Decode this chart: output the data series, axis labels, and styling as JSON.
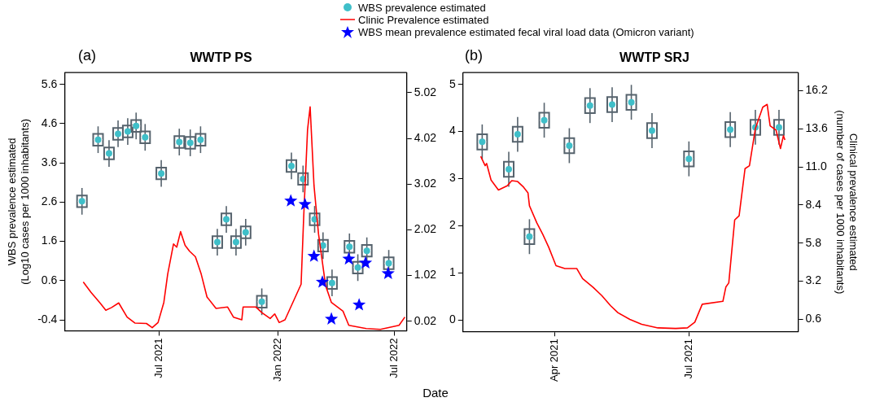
{
  "chart_data": [
    {
      "type": "box",
      "subtitle": "(a)",
      "title": "WWTP PS",
      "xlabel": "Date",
      "ylabel": "WBS prevalence estimated\n(Log10 cases per 1000 inhabitants)",
      "legend": "top",
      "grid": false,
      "xlim": [
        "2021-02-04",
        "2022-07-20"
      ],
      "xticks": [
        {
          "value": "2021-07-01",
          "label": "Jul 2021"
        },
        {
          "value": "2022-01-01",
          "label": "Jan 2022"
        },
        {
          "value": "2022-07-01",
          "label": "Jul 2022"
        }
      ],
      "ylim": [
        -0.68,
        5.9
      ],
      "yticks": [
        -0.4,
        0.6,
        1.6,
        2.6,
        3.6,
        4.6,
        5.6
      ],
      "y2lim": [
        -0.19,
        5.46
      ],
      "y2ticks": [
        0.02,
        1.02,
        2.02,
        3.02,
        4.02,
        5.02
      ],
      "series": [
        {
          "type": "scatter",
          "name": "WBS prevalence estimated",
          "color": "#3fbfc9",
          "marker": "circle",
          "x": [
            "2021-03-03",
            "2021-03-28",
            "2021-04-14",
            "2021-04-28",
            "2021-05-13",
            "2021-05-26",
            "2021-06-09",
            "2021-07-04",
            "2021-08-01",
            "2021-08-18",
            "2021-09-03",
            "2021-09-29",
            "2021-10-13",
            "2021-10-28",
            "2021-11-12",
            "2021-12-07",
            "2022-01-22",
            "2022-02-09",
            "2022-02-27",
            "2022-03-12",
            "2022-03-26",
            "2022-04-22",
            "2022-05-05",
            "2022-05-19",
            "2022-06-22"
          ],
          "values": [
            2.62,
            4.19,
            3.84,
            4.34,
            4.4,
            4.54,
            4.25,
            3.33,
            4.13,
            4.11,
            4.19,
            1.58,
            2.16,
            1.58,
            1.83,
            0.06,
            3.52,
            3.19,
            2.16,
            1.49,
            0.54,
            1.46,
            0.93,
            1.36,
            1.04
          ]
        },
        {
          "type": "line",
          "name": "Clinic Prevalence estimated",
          "color": "#ff0000",
          "axis": "y2",
          "line_style": "solid",
          "x": [
            "2021-03-05",
            "2021-03-17",
            "2021-03-31",
            "2021-04-09",
            "2021-04-18",
            "2021-04-29",
            "2021-05-12",
            "2021-05-24",
            "2021-06-11",
            "2021-06-20",
            "2021-06-29",
            "2021-07-08",
            "2021-07-14",
            "2021-07-23",
            "2021-07-28",
            "2021-08-03",
            "2021-08-10",
            "2021-08-17",
            "2021-08-26",
            "2021-09-04",
            "2021-09-13",
            "2021-09-27",
            "2021-10-15",
            "2021-10-24",
            "2021-11-06",
            "2021-11-08",
            "2021-11-28",
            "2021-12-07",
            "2021-12-20",
            "2021-12-27",
            "2022-01-03",
            "2022-01-12",
            "2022-02-06",
            "2022-02-10",
            "2022-02-16",
            "2022-02-20",
            "2022-02-26",
            "2022-03-05",
            "2022-03-16",
            "2022-03-25",
            "2022-04-12",
            "2022-04-21",
            "2022-05-18",
            "2022-06-09",
            "2022-07-08",
            "2022-07-17"
          ],
          "values": [
            0.88,
            0.65,
            0.42,
            0.26,
            0.32,
            0.42,
            0.11,
            -0.02,
            -0.03,
            -0.12,
            -0.01,
            0.43,
            1.05,
            1.71,
            1.64,
            1.98,
            1.68,
            1.55,
            1.43,
            1.05,
            0.55,
            0.3,
            0.33,
            0.11,
            0.05,
            0.33,
            0.33,
            0.21,
            0.08,
            0.18,
            -0.01,
            0.05,
            0.83,
            2.3,
            4.21,
            4.71,
            2.99,
            1.93,
            0.8,
            0.43,
            0.24,
            -0.07,
            -0.14,
            -0.16,
            -0.07,
            0.11
          ]
        },
        {
          "type": "box",
          "color": "#56636d",
          "x": [
            "2021-03-03",
            "2021-03-28",
            "2021-04-14",
            "2021-04-28",
            "2021-05-13",
            "2021-05-26",
            "2021-06-09",
            "2021-07-04",
            "2021-08-01",
            "2021-08-18",
            "2021-09-03",
            "2021-09-29",
            "2021-10-13",
            "2021-10-28",
            "2021-11-12",
            "2021-12-07",
            "2022-01-22",
            "2022-02-09",
            "2022-02-27",
            "2022-03-12",
            "2022-03-26",
            "2022-04-22",
            "2022-05-05",
            "2022-05-19",
            "2022-06-22"
          ],
          "boxes": [
            {
              "low": 2.28,
              "q1": 2.47,
              "median": 2.62,
              "q3": 2.77,
              "high": 2.96
            },
            {
              "low": 3.85,
              "q1": 4.04,
              "median": 4.19,
              "q3": 4.34,
              "high": 4.53
            },
            {
              "low": 3.5,
              "q1": 3.69,
              "median": 3.84,
              "q3": 3.99,
              "high": 4.18
            },
            {
              "low": 4.0,
              "q1": 4.19,
              "median": 4.34,
              "q3": 4.49,
              "high": 4.68
            },
            {
              "low": 4.06,
              "q1": 4.25,
              "median": 4.4,
              "q3": 4.55,
              "high": 4.74
            },
            {
              "low": 4.2,
              "q1": 4.39,
              "median": 4.54,
              "q3": 4.69,
              "high": 4.88
            },
            {
              "low": 3.91,
              "q1": 4.1,
              "median": 4.25,
              "q3": 4.4,
              "high": 4.59
            },
            {
              "low": 2.99,
              "q1": 3.18,
              "median": 3.33,
              "q3": 3.48,
              "high": 3.67
            },
            {
              "low": 3.79,
              "q1": 3.98,
              "median": 4.13,
              "q3": 4.28,
              "high": 4.47
            },
            {
              "low": 3.77,
              "q1": 3.96,
              "median": 4.11,
              "q3": 4.26,
              "high": 4.45
            },
            {
              "low": 3.85,
              "q1": 4.04,
              "median": 4.19,
              "q3": 4.34,
              "high": 4.53
            },
            {
              "low": 1.24,
              "q1": 1.43,
              "median": 1.58,
              "q3": 1.73,
              "high": 1.92
            },
            {
              "low": 1.82,
              "q1": 2.01,
              "median": 2.16,
              "q3": 2.31,
              "high": 2.5
            },
            {
              "low": 1.24,
              "q1": 1.43,
              "median": 1.58,
              "q3": 1.73,
              "high": 1.92
            },
            {
              "low": 1.49,
              "q1": 1.68,
              "median": 1.83,
              "q3": 1.98,
              "high": 2.17
            },
            {
              "low": -0.28,
              "q1": -0.09,
              "median": 0.06,
              "q3": 0.21,
              "high": 0.4
            },
            {
              "low": 3.18,
              "q1": 3.37,
              "median": 3.52,
              "q3": 3.67,
              "high": 3.86
            },
            {
              "low": 2.85,
              "q1": 3.04,
              "median": 3.19,
              "q3": 3.34,
              "high": 3.53
            },
            {
              "low": 1.82,
              "q1": 2.01,
              "median": 2.16,
              "q3": 2.31,
              "high": 2.5
            },
            {
              "low": 1.15,
              "q1": 1.34,
              "median": 1.49,
              "q3": 1.64,
              "high": 1.83
            },
            {
              "low": 0.2,
              "q1": 0.39,
              "median": 0.54,
              "q3": 0.69,
              "high": 0.88
            },
            {
              "low": 1.12,
              "q1": 1.31,
              "median": 1.46,
              "q3": 1.61,
              "high": 1.8
            },
            {
              "low": 0.59,
              "q1": 0.78,
              "median": 0.93,
              "q3": 1.08,
              "high": 1.27
            },
            {
              "low": 1.02,
              "q1": 1.21,
              "median": 1.36,
              "q3": 1.51,
              "high": 1.7
            },
            {
              "low": 0.7,
              "q1": 0.89,
              "median": 1.04,
              "q3": 1.19,
              "high": 1.38
            }
          ]
        },
        {
          "type": "scatter",
          "name": "WBS mean prevalence estimated fecal viral load data (Omicron variant)",
          "color": "#0000ff",
          "marker": "star",
          "x": [
            "2022-01-21",
            "2022-02-12",
            "2022-02-26",
            "2022-03-11",
            "2022-03-25",
            "2022-04-21",
            "2022-05-07",
            "2022-05-17",
            "2022-06-21"
          ],
          "values": [
            2.63,
            2.54,
            1.22,
            0.56,
            -0.38,
            1.15,
            -0.02,
            1.05,
            0.78
          ]
        }
      ]
    },
    {
      "type": "box",
      "subtitle": "(b)",
      "title": "WWTP SRJ",
      "y2label": "Clinical prevalence estimated\n(number of cases per 1000 inhabitants)",
      "grid": false,
      "xlim": [
        "2021-01-29",
        "2021-09-13"
      ],
      "xticks": [
        {
          "value": "2021-04-01",
          "label": "Apr 2021"
        },
        {
          "value": "2021-07-01",
          "label": "Jul 2021"
        }
      ],
      "ylim": [
        -0.24,
        5.25
      ],
      "yticks": [
        0,
        1,
        2,
        3,
        4,
        5
      ],
      "y2lim": [
        -0.22,
        17.43
      ],
      "y2ticks": [
        0.6,
        3.2,
        5.8,
        8.4,
        {
          "value": 11,
          "label": "11.0"
        },
        13.6,
        16.2
      ],
      "series": [
        {
          "type": "scatter",
          "color": "#3fbfc9",
          "marker": "circle",
          "x": [
            "2021-02-11",
            "2021-03-01",
            "2021-03-07",
            "2021-03-15",
            "2021-03-25",
            "2021-04-11",
            "2021-04-25",
            "2021-05-10",
            "2021-05-23",
            "2021-06-06",
            "2021-07-01",
            "2021-07-29",
            "2021-08-15",
            "2021-08-31"
          ],
          "values": [
            3.78,
            3.2,
            3.94,
            1.77,
            4.24,
            3.7,
            4.55,
            4.57,
            4.62,
            4.02,
            3.42,
            4.04,
            4.09,
            4.09
          ]
        },
        {
          "type": "line",
          "color": "#ff0000",
          "axis": "y2",
          "line_style": "solid",
          "x": [
            "2021-02-10",
            "2021-02-13",
            "2021-02-14",
            "2021-02-17",
            "2021-02-22",
            "2021-02-28",
            "2021-03-03",
            "2021-03-07",
            "2021-03-11",
            "2021-03-14",
            "2021-03-15",
            "2021-03-20",
            "2021-03-24",
            "2021-03-28",
            "2021-04-02",
            "2021-04-08",
            "2021-04-16",
            "2021-04-20",
            "2021-04-27",
            "2021-05-03",
            "2021-05-09",
            "2021-05-14",
            "2021-05-22",
            "2021-05-30",
            "2021-06-10",
            "2021-06-22",
            "2021-06-30",
            "2021-07-05",
            "2021-07-10",
            "2021-07-24",
            "2021-07-26",
            "2021-07-28",
            "2021-08-01",
            "2021-08-04",
            "2021-08-08",
            "2021-08-11",
            "2021-08-15",
            "2021-08-20",
            "2021-08-23",
            "2021-08-25",
            "2021-08-29",
            "2021-09-01",
            "2021-09-03",
            "2021-09-04"
          ],
          "values": [
            11.72,
            11.08,
            11.23,
            10.1,
            9.42,
            9.71,
            10.06,
            10.0,
            9.62,
            9.23,
            8.35,
            7.18,
            6.4,
            5.53,
            4.26,
            4.07,
            4.07,
            3.38,
            2.8,
            2.22,
            1.53,
            1.05,
            0.6,
            0.27,
            0.02,
            -0.02,
            0.02,
            0.41,
            1.63,
            1.83,
            2.8,
            3.09,
            7.38,
            7.67,
            10.88,
            11.08,
            13.61,
            15.07,
            15.26,
            13.8,
            13.51,
            12.25,
            13.12,
            12.83
          ]
        },
        {
          "type": "box",
          "color": "#56636d",
          "x": [
            "2021-02-11",
            "2021-03-01",
            "2021-03-07",
            "2021-03-15",
            "2021-03-25",
            "2021-04-11",
            "2021-04-25",
            "2021-05-10",
            "2021-05-23",
            "2021-06-06",
            "2021-07-01",
            "2021-07-29",
            "2021-08-15",
            "2021-08-31"
          ],
          "boxes": [
            {
              "low": 3.41,
              "q1": 3.62,
              "median": 3.78,
              "q3": 3.94,
              "high": 4.15
            },
            {
              "low": 2.83,
              "q1": 3.04,
              "median": 3.2,
              "q3": 3.36,
              "high": 3.57
            },
            {
              "low": 3.57,
              "q1": 3.78,
              "median": 3.94,
              "q3": 4.1,
              "high": 4.31
            },
            {
              "low": 1.4,
              "q1": 1.61,
              "median": 1.77,
              "q3": 1.93,
              "high": 2.14
            },
            {
              "low": 3.87,
              "q1": 4.08,
              "median": 4.24,
              "q3": 4.4,
              "high": 4.61
            },
            {
              "low": 3.33,
              "q1": 3.54,
              "median": 3.7,
              "q3": 3.86,
              "high": 4.07
            },
            {
              "low": 4.18,
              "q1": 4.39,
              "median": 4.55,
              "q3": 4.71,
              "high": 4.92
            },
            {
              "low": 4.2,
              "q1": 4.41,
              "median": 4.57,
              "q3": 4.73,
              "high": 4.94
            },
            {
              "low": 4.25,
              "q1": 4.46,
              "median": 4.62,
              "q3": 4.78,
              "high": 4.99
            },
            {
              "low": 3.65,
              "q1": 3.86,
              "median": 4.02,
              "q3": 4.18,
              "high": 4.39
            },
            {
              "low": 3.05,
              "q1": 3.26,
              "median": 3.42,
              "q3": 3.58,
              "high": 3.79
            },
            {
              "low": 3.67,
              "q1": 3.88,
              "median": 4.04,
              "q3": 4.2,
              "high": 4.41
            },
            {
              "low": 3.72,
              "q1": 3.93,
              "median": 4.09,
              "q3": 4.25,
              "high": 4.46
            },
            {
              "low": 3.72,
              "q1": 3.93,
              "median": 4.09,
              "q3": 4.25,
              "high": 4.46
            }
          ]
        }
      ]
    }
  ]
}
